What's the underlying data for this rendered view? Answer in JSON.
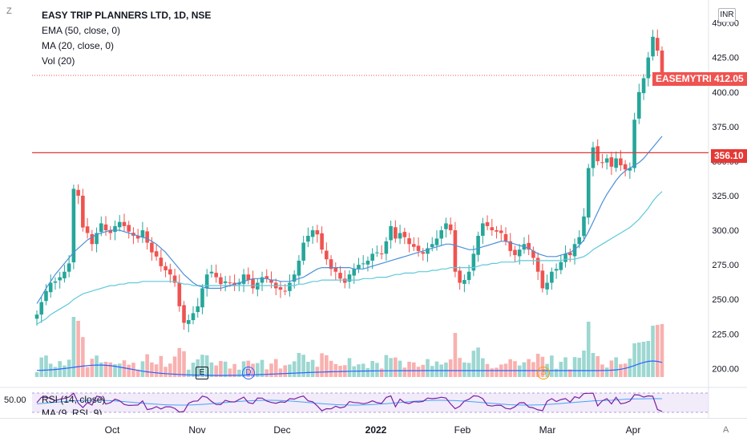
{
  "legend": {
    "title": "EASY TRIP PLANNERS LTD, 1D, NSE",
    "ema": "EMA (50, close, 0)",
    "ma": "MA (20, close, 0)",
    "vol": "Vol (20)"
  },
  "currency": "INR",
  "price_labels": {
    "symbol": "EASEMYTRIP",
    "last": "412.05",
    "level": "356.10"
  },
  "rsi": {
    "label": "RSI (14, close)",
    "value": "50.00",
    "ma_label": "MA (9, RSI, 9)"
  },
  "corners": {
    "left": "Z",
    "right": "A"
  },
  "events": {
    "earnings": "E",
    "dividend": "D",
    "split": "S"
  },
  "colors": {
    "up": "#26a69a",
    "down": "#ef5350",
    "ema": "#5fc9d9",
    "ma": "#4a90d9",
    "resistance": "#e53935",
    "rsi": "#7b1fa2",
    "rsi_ma": "#42a5f5",
    "rsi_band": "#e9ddf7"
  },
  "chart_data": {
    "type": "candlestick",
    "title": "EASY TRIP PLANNERS LTD, 1D, NSE",
    "y_ticks": [
      450,
      425,
      400,
      375,
      350,
      325,
      300,
      275,
      250,
      225,
      200
    ],
    "ylim": [
      188,
      455
    ],
    "x_labels": [
      "Oct",
      "Nov",
      "Dec",
      "2022",
      "Feb",
      "Mar",
      "Apr"
    ],
    "last_price": 412.05,
    "horizontal_level": 356.1,
    "closes": [
      239,
      248,
      256,
      262,
      263,
      266,
      270,
      276,
      330,
      325,
      302,
      298,
      290,
      298,
      305,
      300,
      298,
      303,
      306,
      303,
      299,
      296,
      294,
      300,
      291,
      284,
      281,
      274,
      271,
      268,
      262,
      245,
      233,
      235,
      240,
      245,
      258,
      268,
      270,
      266,
      261,
      263,
      262,
      260,
      262,
      268,
      264,
      258,
      262,
      266,
      265,
      262,
      258,
      257,
      256,
      262,
      268,
      278,
      291,
      296,
      300,
      297,
      286,
      279,
      272,
      270,
      265,
      262,
      268,
      272,
      275,
      276,
      278,
      283,
      284,
      283,
      292,
      303,
      294,
      298,
      295,
      290,
      288,
      285,
      283,
      287,
      290,
      294,
      300,
      305,
      300,
      270,
      262,
      264,
      270,
      283,
      296,
      305,
      303,
      300,
      299,
      298,
      292,
      285,
      282,
      286,
      290,
      286,
      280,
      270,
      258,
      262,
      270,
      272,
      277,
      283,
      282,
      290,
      295,
      310,
      345,
      360,
      350,
      349,
      352,
      346,
      352,
      347,
      344,
      345,
      380,
      400,
      410,
      425,
      440,
      430,
      412.05
    ],
    "ema50": [
      232,
      234,
      236,
      239,
      241,
      243,
      245,
      247,
      250,
      252,
      254,
      255,
      256,
      257,
      258,
      259,
      260,
      260,
      261,
      261,
      262,
      262,
      262,
      263,
      263,
      263,
      263,
      263,
      263,
      263,
      263,
      262,
      261,
      261,
      260,
      260,
      260,
      260,
      260,
      260,
      260,
      260,
      260,
      260,
      260,
      260,
      260,
      260,
      260,
      260,
      260,
      260,
      260,
      260,
      260,
      260,
      260,
      261,
      261,
      262,
      263,
      263,
      264,
      264,
      264,
      264,
      264,
      264,
      264,
      264,
      264,
      265,
      265,
      265,
      266,
      266,
      266,
      267,
      268,
      268,
      269,
      269,
      269,
      270,
      270,
      270,
      271,
      271,
      272,
      272,
      273,
      273,
      273,
      273,
      273,
      273,
      274,
      275,
      275,
      276,
      276,
      277,
      277,
      277,
      277,
      278,
      278,
      278,
      278,
      278,
      278,
      278,
      278,
      278,
      278,
      279,
      279,
      279,
      280,
      281,
      283,
      286,
      288,
      290,
      292,
      294,
      296,
      298,
      300,
      302,
      305,
      308,
      312,
      316,
      321,
      325,
      328
    ],
    "ma20": [
      247,
      252,
      258,
      263,
      268,
      272,
      276,
      280,
      284,
      287,
      290,
      293,
      295,
      297,
      298,
      299,
      300,
      300,
      300,
      299,
      298,
      297,
      296,
      295,
      294,
      292,
      290,
      287,
      284,
      280,
      276,
      272,
      268,
      265,
      262,
      260,
      259,
      258,
      258,
      258,
      258,
      259,
      260,
      261,
      262,
      263,
      264,
      265,
      265,
      265,
      265,
      264,
      264,
      263,
      263,
      263,
      264,
      265,
      266,
      268,
      270,
      272,
      273,
      273,
      273,
      273,
      273,
      273,
      273,
      272,
      272,
      272,
      273,
      274,
      275,
      276,
      277,
      278,
      279,
      280,
      281,
      282,
      283,
      284,
      285,
      286,
      287,
      288,
      289,
      290,
      290,
      289,
      288,
      287,
      286,
      286,
      287,
      288,
      289,
      290,
      291,
      292,
      292,
      291,
      290,
      289,
      288,
      287,
      285,
      283,
      282,
      281,
      281,
      281,
      282,
      283,
      284,
      286,
      289,
      293,
      299,
      306,
      313,
      320,
      326,
      331,
      336,
      340,
      343,
      345,
      347,
      349,
      352,
      356,
      360,
      364,
      368
    ]
  }
}
